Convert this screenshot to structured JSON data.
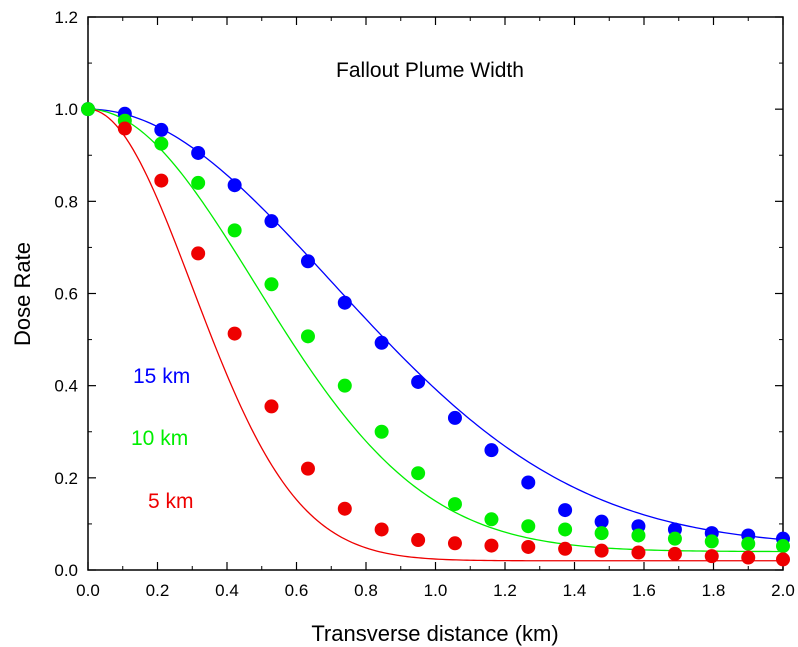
{
  "chart_data": {
    "type": "scatter",
    "title": "Fallout Plume Width",
    "xlabel": "Transverse distance (km)",
    "ylabel": "Dose Rate",
    "xlim": [
      0.0,
      2.0
    ],
    "ylim": [
      0.0,
      1.2
    ],
    "x_ticks": [
      "0.0",
      "0.2",
      "0.4",
      "0.6",
      "0.8",
      "1.0",
      "1.2",
      "1.4",
      "1.6",
      "1.8",
      "2.0"
    ],
    "y_ticks": [
      "0.0",
      "0.2",
      "0.4",
      "0.6",
      "0.8",
      "1.0",
      "1.2"
    ],
    "grid": false,
    "series": [
      {
        "name": "15 km",
        "color": "#0000ff",
        "fit_sigma": 0.7,
        "fit_floor": 0.05,
        "x": [
          0.0,
          0.106,
          0.211,
          0.317,
          0.422,
          0.528,
          0.633,
          0.739,
          0.845,
          0.95,
          1.056,
          1.161,
          1.267,
          1.373,
          1.478,
          1.584,
          1.689,
          1.795,
          1.9,
          2.0
        ],
        "y": [
          1.0,
          0.99,
          0.955,
          0.905,
          0.835,
          0.757,
          0.67,
          0.58,
          0.493,
          0.408,
          0.33,
          0.26,
          0.19,
          0.13,
          0.105,
          0.095,
          0.088,
          0.08,
          0.075,
          0.068
        ]
      },
      {
        "name": "10 km",
        "color": "#00ee00",
        "fit_sigma": 0.48,
        "fit_floor": 0.04,
        "x": [
          0.0,
          0.106,
          0.211,
          0.317,
          0.422,
          0.528,
          0.633,
          0.739,
          0.845,
          0.95,
          1.056,
          1.161,
          1.267,
          1.373,
          1.478,
          1.584,
          1.689,
          1.795,
          1.9,
          2.0
        ],
        "y": [
          1.0,
          0.975,
          0.925,
          0.84,
          0.737,
          0.62,
          0.507,
          0.4,
          0.3,
          0.21,
          0.143,
          0.11,
          0.095,
          0.088,
          0.08,
          0.075,
          0.068,
          0.062,
          0.057,
          0.052
        ]
      },
      {
        "name": "5 km",
        "color": "#ee0000",
        "fit_sigma": 0.3,
        "fit_floor": 0.02,
        "x": [
          0.106,
          0.211,
          0.317,
          0.422,
          0.528,
          0.633,
          0.739,
          0.845,
          0.95,
          1.056,
          1.161,
          1.267,
          1.373,
          1.478,
          1.584,
          1.689,
          1.795,
          1.9,
          2.0
        ],
        "y": [
          0.958,
          0.845,
          0.687,
          0.513,
          0.355,
          0.22,
          0.133,
          0.088,
          0.065,
          0.058,
          0.053,
          0.05,
          0.046,
          0.042,
          0.038,
          0.035,
          0.03,
          0.027,
          0.023
        ]
      }
    ]
  }
}
